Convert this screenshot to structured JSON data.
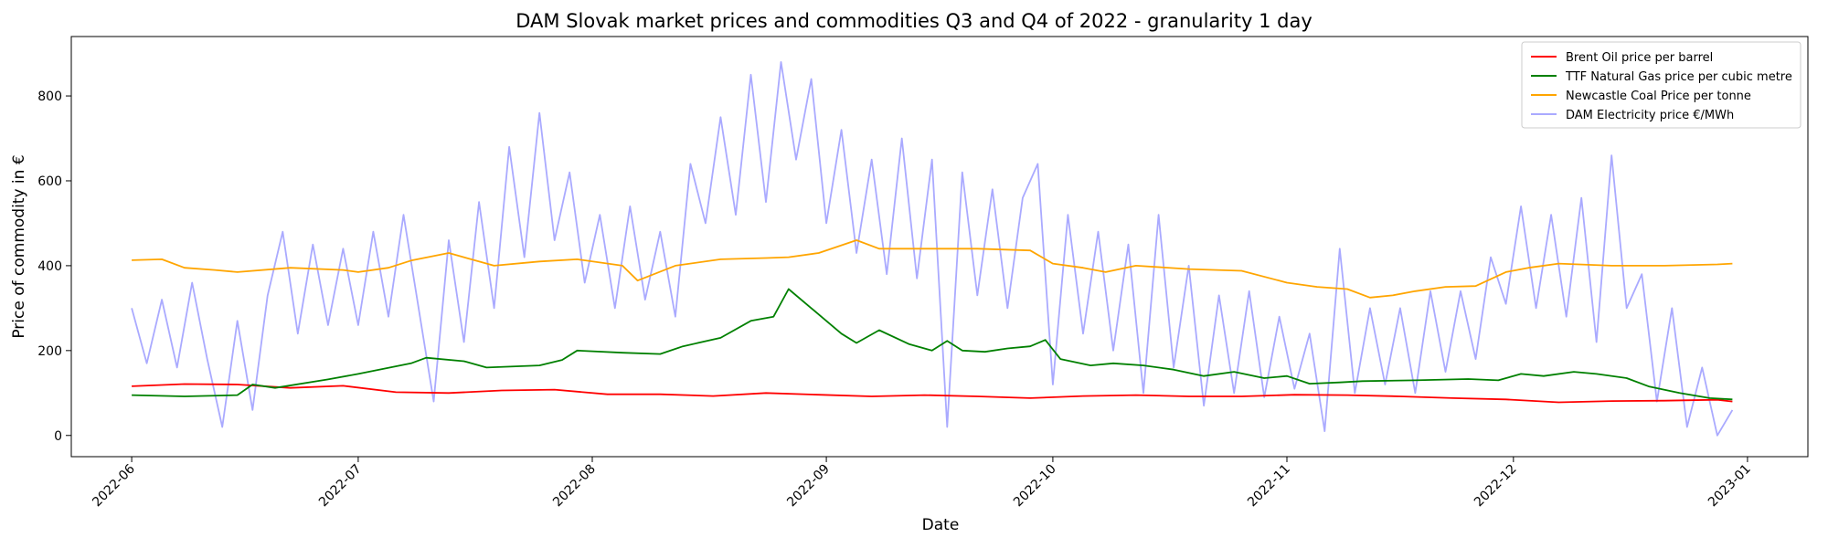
{
  "chart_data": {
    "type": "line",
    "title": "DAM Slovak market prices and commodities Q3 and Q4 of 2022 - granularity 1 day",
    "xlabel": "Date",
    "ylabel": "Price of commodity in €",
    "xlim": [
      "2022-05-24",
      "2023-01-09"
    ],
    "ylim": [
      -50,
      940
    ],
    "grid": false,
    "legend_position": "top-right",
    "x_ticks": [
      "2022-06",
      "2022-07",
      "2022-08",
      "2022-09",
      "2022-10",
      "2022-11",
      "2022-12",
      "2023-01"
    ],
    "y_ticks": [
      0,
      200,
      400,
      600,
      800
    ],
    "series": [
      {
        "name": "Brent Oil price per barrel",
        "color": "#ff0000",
        "points": [
          [
            "2022-06-01",
            116
          ],
          [
            "2022-06-08",
            121
          ],
          [
            "2022-06-15",
            120
          ],
          [
            "2022-06-22",
            112
          ],
          [
            "2022-06-29",
            117
          ],
          [
            "2022-07-06",
            102
          ],
          [
            "2022-07-13",
            100
          ],
          [
            "2022-07-20",
            106
          ],
          [
            "2022-07-27",
            108
          ],
          [
            "2022-08-03",
            97
          ],
          [
            "2022-08-10",
            97
          ],
          [
            "2022-08-17",
            93
          ],
          [
            "2022-08-24",
            100
          ],
          [
            "2022-08-31",
            96
          ],
          [
            "2022-09-07",
            92
          ],
          [
            "2022-09-14",
            95
          ],
          [
            "2022-09-21",
            92
          ],
          [
            "2022-09-28",
            88
          ],
          [
            "2022-10-05",
            93
          ],
          [
            "2022-10-12",
            95
          ],
          [
            "2022-10-19",
            92
          ],
          [
            "2022-10-26",
            92
          ],
          [
            "2022-11-02",
            96
          ],
          [
            "2022-11-09",
            95
          ],
          [
            "2022-11-16",
            92
          ],
          [
            "2022-11-23",
            88
          ],
          [
            "2022-11-30",
            85
          ],
          [
            "2022-12-07",
            78
          ],
          [
            "2022-12-14",
            81
          ],
          [
            "2022-12-21",
            82
          ],
          [
            "2022-12-28",
            84
          ],
          [
            "2022-12-30",
            80
          ]
        ]
      },
      {
        "name": "TTF Natural Gas price per cubic metre",
        "color": "#008000",
        "points": [
          [
            "2022-06-01",
            95
          ],
          [
            "2022-06-08",
            92
          ],
          [
            "2022-06-15",
            95
          ],
          [
            "2022-06-17",
            120
          ],
          [
            "2022-06-20",
            112
          ],
          [
            "2022-06-27",
            132
          ],
          [
            "2022-07-01",
            145
          ],
          [
            "2022-07-08",
            170
          ],
          [
            "2022-07-10",
            183
          ],
          [
            "2022-07-15",
            175
          ],
          [
            "2022-07-18",
            160
          ],
          [
            "2022-07-25",
            165
          ],
          [
            "2022-07-28",
            178
          ],
          [
            "2022-07-30",
            200
          ],
          [
            "2022-08-05",
            195
          ],
          [
            "2022-08-10",
            192
          ],
          [
            "2022-08-13",
            210
          ],
          [
            "2022-08-18",
            230
          ],
          [
            "2022-08-22",
            270
          ],
          [
            "2022-08-25",
            280
          ],
          [
            "2022-08-27",
            345
          ],
          [
            "2022-08-30",
            300
          ],
          [
            "2022-09-03",
            240
          ],
          [
            "2022-09-05",
            218
          ],
          [
            "2022-09-08",
            248
          ],
          [
            "2022-09-12",
            215
          ],
          [
            "2022-09-15",
            200
          ],
          [
            "2022-09-17",
            223
          ],
          [
            "2022-09-19",
            200
          ],
          [
            "2022-09-22",
            197
          ],
          [
            "2022-09-25",
            205
          ],
          [
            "2022-09-28",
            210
          ],
          [
            "2022-09-30",
            225
          ],
          [
            "2022-10-02",
            180
          ],
          [
            "2022-10-06",
            165
          ],
          [
            "2022-10-09",
            170
          ],
          [
            "2022-10-13",
            165
          ],
          [
            "2022-10-17",
            155
          ],
          [
            "2022-10-21",
            140
          ],
          [
            "2022-10-25",
            150
          ],
          [
            "2022-10-29",
            135
          ],
          [
            "2022-11-01",
            140
          ],
          [
            "2022-11-04",
            122
          ],
          [
            "2022-11-08",
            125
          ],
          [
            "2022-11-11",
            128
          ],
          [
            "2022-11-18",
            130
          ],
          [
            "2022-11-25",
            133
          ],
          [
            "2022-11-29",
            130
          ],
          [
            "2022-12-02",
            145
          ],
          [
            "2022-12-05",
            140
          ],
          [
            "2022-12-09",
            150
          ],
          [
            "2022-12-12",
            145
          ],
          [
            "2022-12-16",
            135
          ],
          [
            "2022-12-19",
            115
          ],
          [
            "2022-12-23",
            100
          ],
          [
            "2022-12-27",
            88
          ],
          [
            "2022-12-30",
            85
          ]
        ]
      },
      {
        "name": "Newcastle Coal Price per tonne",
        "color": "#ffa500",
        "points": [
          [
            "2022-06-01",
            413
          ],
          [
            "2022-06-05",
            415
          ],
          [
            "2022-06-08",
            395
          ],
          [
            "2022-06-12",
            390
          ],
          [
            "2022-06-15",
            385
          ],
          [
            "2022-06-22",
            395
          ],
          [
            "2022-06-29",
            390
          ],
          [
            "2022-07-01",
            385
          ],
          [
            "2022-07-05",
            395
          ],
          [
            "2022-07-08",
            412
          ],
          [
            "2022-07-13",
            430
          ],
          [
            "2022-07-19",
            400
          ],
          [
            "2022-07-25",
            410
          ],
          [
            "2022-07-30",
            415
          ],
          [
            "2022-08-05",
            400
          ],
          [
            "2022-08-07",
            365
          ],
          [
            "2022-08-12",
            400
          ],
          [
            "2022-08-18",
            415
          ],
          [
            "2022-08-24",
            418
          ],
          [
            "2022-08-27",
            420
          ],
          [
            "2022-08-31",
            430
          ],
          [
            "2022-09-05",
            460
          ],
          [
            "2022-09-08",
            440
          ],
          [
            "2022-09-14",
            440
          ],
          [
            "2022-09-21",
            440
          ],
          [
            "2022-09-28",
            436
          ],
          [
            "2022-10-01",
            405
          ],
          [
            "2022-10-05",
            395
          ],
          [
            "2022-10-08",
            385
          ],
          [
            "2022-10-12",
            400
          ],
          [
            "2022-10-19",
            392
          ],
          [
            "2022-10-26",
            388
          ],
          [
            "2022-11-01",
            360
          ],
          [
            "2022-11-05",
            350
          ],
          [
            "2022-11-09",
            345
          ],
          [
            "2022-11-12",
            325
          ],
          [
            "2022-11-15",
            330
          ],
          [
            "2022-11-18",
            340
          ],
          [
            "2022-11-22",
            350
          ],
          [
            "2022-11-26",
            352
          ],
          [
            "2022-11-30",
            385
          ],
          [
            "2022-12-03",
            395
          ],
          [
            "2022-12-07",
            405
          ],
          [
            "2022-12-14",
            400
          ],
          [
            "2022-12-21",
            400
          ],
          [
            "2022-12-28",
            403
          ],
          [
            "2022-12-30",
            405
          ]
        ]
      },
      {
        "name": "DAM Electricity price €/MWh",
        "color": "#aaaaff",
        "points": [
          [
            "2022-06-01",
            300
          ],
          [
            "2022-06-03",
            170
          ],
          [
            "2022-06-05",
            320
          ],
          [
            "2022-06-07",
            160
          ],
          [
            "2022-06-09",
            360
          ],
          [
            "2022-06-11",
            180
          ],
          [
            "2022-06-13",
            20
          ],
          [
            "2022-06-15",
            270
          ],
          [
            "2022-06-17",
            60
          ],
          [
            "2022-06-19",
            330
          ],
          [
            "2022-06-21",
            480
          ],
          [
            "2022-06-23",
            240
          ],
          [
            "2022-06-25",
            450
          ],
          [
            "2022-06-27",
            260
          ],
          [
            "2022-06-29",
            440
          ],
          [
            "2022-07-01",
            260
          ],
          [
            "2022-07-03",
            480
          ],
          [
            "2022-07-05",
            280
          ],
          [
            "2022-07-07",
            520
          ],
          [
            "2022-07-09",
            300
          ],
          [
            "2022-07-11",
            80
          ],
          [
            "2022-07-13",
            460
          ],
          [
            "2022-07-15",
            220
          ],
          [
            "2022-07-17",
            550
          ],
          [
            "2022-07-19",
            300
          ],
          [
            "2022-07-21",
            680
          ],
          [
            "2022-07-23",
            420
          ],
          [
            "2022-07-25",
            760
          ],
          [
            "2022-07-27",
            460
          ],
          [
            "2022-07-29",
            620
          ],
          [
            "2022-07-31",
            360
          ],
          [
            "2022-08-02",
            520
          ],
          [
            "2022-08-04",
            300
          ],
          [
            "2022-08-06",
            540
          ],
          [
            "2022-08-08",
            320
          ],
          [
            "2022-08-10",
            480
          ],
          [
            "2022-08-12",
            280
          ],
          [
            "2022-08-14",
            640
          ],
          [
            "2022-08-16",
            500
          ],
          [
            "2022-08-18",
            750
          ],
          [
            "2022-08-20",
            520
          ],
          [
            "2022-08-22",
            850
          ],
          [
            "2022-08-24",
            550
          ],
          [
            "2022-08-26",
            880
          ],
          [
            "2022-08-28",
            650
          ],
          [
            "2022-08-30",
            840
          ],
          [
            "2022-09-01",
            500
          ],
          [
            "2022-09-03",
            720
          ],
          [
            "2022-09-05",
            430
          ],
          [
            "2022-09-07",
            650
          ],
          [
            "2022-09-09",
            380
          ],
          [
            "2022-09-11",
            700
          ],
          [
            "2022-09-13",
            370
          ],
          [
            "2022-09-15",
            650
          ],
          [
            "2022-09-17",
            20
          ],
          [
            "2022-09-19",
            620
          ],
          [
            "2022-09-21",
            330
          ],
          [
            "2022-09-23",
            580
          ],
          [
            "2022-09-25",
            300
          ],
          [
            "2022-09-27",
            560
          ],
          [
            "2022-09-29",
            640
          ],
          [
            "2022-10-01",
            120
          ],
          [
            "2022-10-03",
            520
          ],
          [
            "2022-10-05",
            240
          ],
          [
            "2022-10-07",
            480
          ],
          [
            "2022-10-09",
            200
          ],
          [
            "2022-10-11",
            450
          ],
          [
            "2022-10-13",
            100
          ],
          [
            "2022-10-15",
            520
          ],
          [
            "2022-10-17",
            160
          ],
          [
            "2022-10-19",
            400
          ],
          [
            "2022-10-21",
            70
          ],
          [
            "2022-10-23",
            330
          ],
          [
            "2022-10-25",
            100
          ],
          [
            "2022-10-27",
            340
          ],
          [
            "2022-10-29",
            90
          ],
          [
            "2022-10-31",
            280
          ],
          [
            "2022-11-02",
            110
          ],
          [
            "2022-11-04",
            240
          ],
          [
            "2022-11-06",
            10
          ],
          [
            "2022-11-08",
            440
          ],
          [
            "2022-11-10",
            100
          ],
          [
            "2022-11-12",
            300
          ],
          [
            "2022-11-14",
            120
          ],
          [
            "2022-11-16",
            300
          ],
          [
            "2022-11-18",
            100
          ],
          [
            "2022-11-20",
            340
          ],
          [
            "2022-11-22",
            150
          ],
          [
            "2022-11-24",
            340
          ],
          [
            "2022-11-26",
            180
          ],
          [
            "2022-11-28",
            420
          ],
          [
            "2022-11-30",
            310
          ],
          [
            "2022-12-02",
            540
          ],
          [
            "2022-12-04",
            300
          ],
          [
            "2022-12-06",
            520
          ],
          [
            "2022-12-08",
            280
          ],
          [
            "2022-12-10",
            560
          ],
          [
            "2022-12-12",
            220
          ],
          [
            "2022-12-14",
            660
          ],
          [
            "2022-12-16",
            300
          ],
          [
            "2022-12-18",
            380
          ],
          [
            "2022-12-20",
            80
          ],
          [
            "2022-12-22",
            300
          ],
          [
            "2022-12-24",
            20
          ],
          [
            "2022-12-26",
            160
          ],
          [
            "2022-12-28",
            0
          ],
          [
            "2022-12-30",
            60
          ]
        ]
      }
    ]
  }
}
